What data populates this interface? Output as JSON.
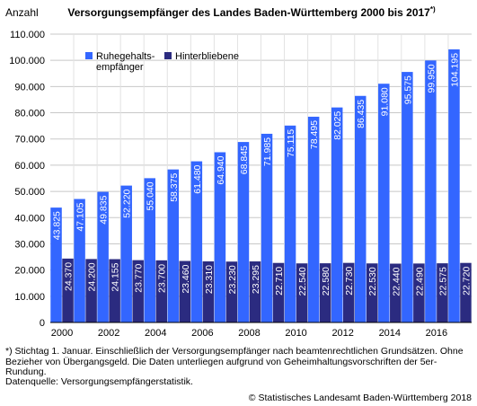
{
  "chart_data": {
    "type": "bar",
    "title": "Versorgungsempfänger des Landes Baden-Württemberg 2000 bis 2017",
    "title_note_marker": "*)",
    "ylabel": "Anzahl",
    "ylim": [
      0,
      110000
    ],
    "yticks": [
      0,
      10000,
      20000,
      30000,
      40000,
      50000,
      60000,
      70000,
      80000,
      90000,
      100000,
      110000
    ],
    "ytick_labels": [
      "0",
      "10.000",
      "20.000",
      "30.000",
      "40.000",
      "50.000",
      "60.000",
      "70.000",
      "80.000",
      "90.000",
      "100.000",
      "110.000"
    ],
    "categories": [
      "2000",
      "2001",
      "2002",
      "2003",
      "2004",
      "2005",
      "2006",
      "2007",
      "2008",
      "2009",
      "2010",
      "2011",
      "2012",
      "2013",
      "2014",
      "2015",
      "2016",
      "2017"
    ],
    "xtick_labels": [
      "2000",
      "2002",
      "2004",
      "2006",
      "2008",
      "2010",
      "2012",
      "2014",
      "2016"
    ],
    "grid": true,
    "legend_position": "top-left",
    "series": [
      {
        "name": "Ruhegehalts-\nempfänger",
        "color": "#3366ff",
        "values": [
          43825,
          47105,
          49835,
          52220,
          55040,
          58375,
          61480,
          64940,
          68845,
          71985,
          75115,
          78495,
          82025,
          86435,
          91080,
          95575,
          99950,
          104195
        ],
        "labels": [
          "43.825",
          "47.105",
          "49.835",
          "52.220",
          "55.040",
          "58.375",
          "61.480",
          "64.940",
          "68.845",
          "71.985",
          "75.115",
          "78.495",
          "82.025",
          "86.435",
          "91.080",
          "95.575",
          "99.950",
          "104.195"
        ]
      },
      {
        "name": "Hinterbliebene",
        "color": "#2b2b80",
        "values": [
          24370,
          24200,
          24155,
          23770,
          23700,
          23460,
          23310,
          23230,
          23295,
          22710,
          22540,
          22580,
          22730,
          22530,
          22440,
          22490,
          22575,
          22720
        ],
        "labels": [
          "24.370",
          "24.200",
          "24.155",
          "23.770",
          "23.700",
          "23.460",
          "23.310",
          "23.230",
          "23.295",
          "22.710",
          "22.540",
          "22.580",
          "22.730",
          "22.530",
          "22.440",
          "22.490",
          "22.575",
          "22.720"
        ]
      }
    ]
  },
  "footnote": "*)  Stichtag 1. Januar. Einschließlich der Versorgungsempfänger nach beamtenrechtlichen Grundsätzen. Ohne Bezieher von Übergangsgeld. Die Daten unterliegen aufgrund von Geheimhaltungsvorschriften der 5er-Rundung.",
  "source": "Datenquelle: Versorgungsempfängerstatistik.",
  "copyright": "© Statistisches Landesamt Baden-Württemberg 2018"
}
